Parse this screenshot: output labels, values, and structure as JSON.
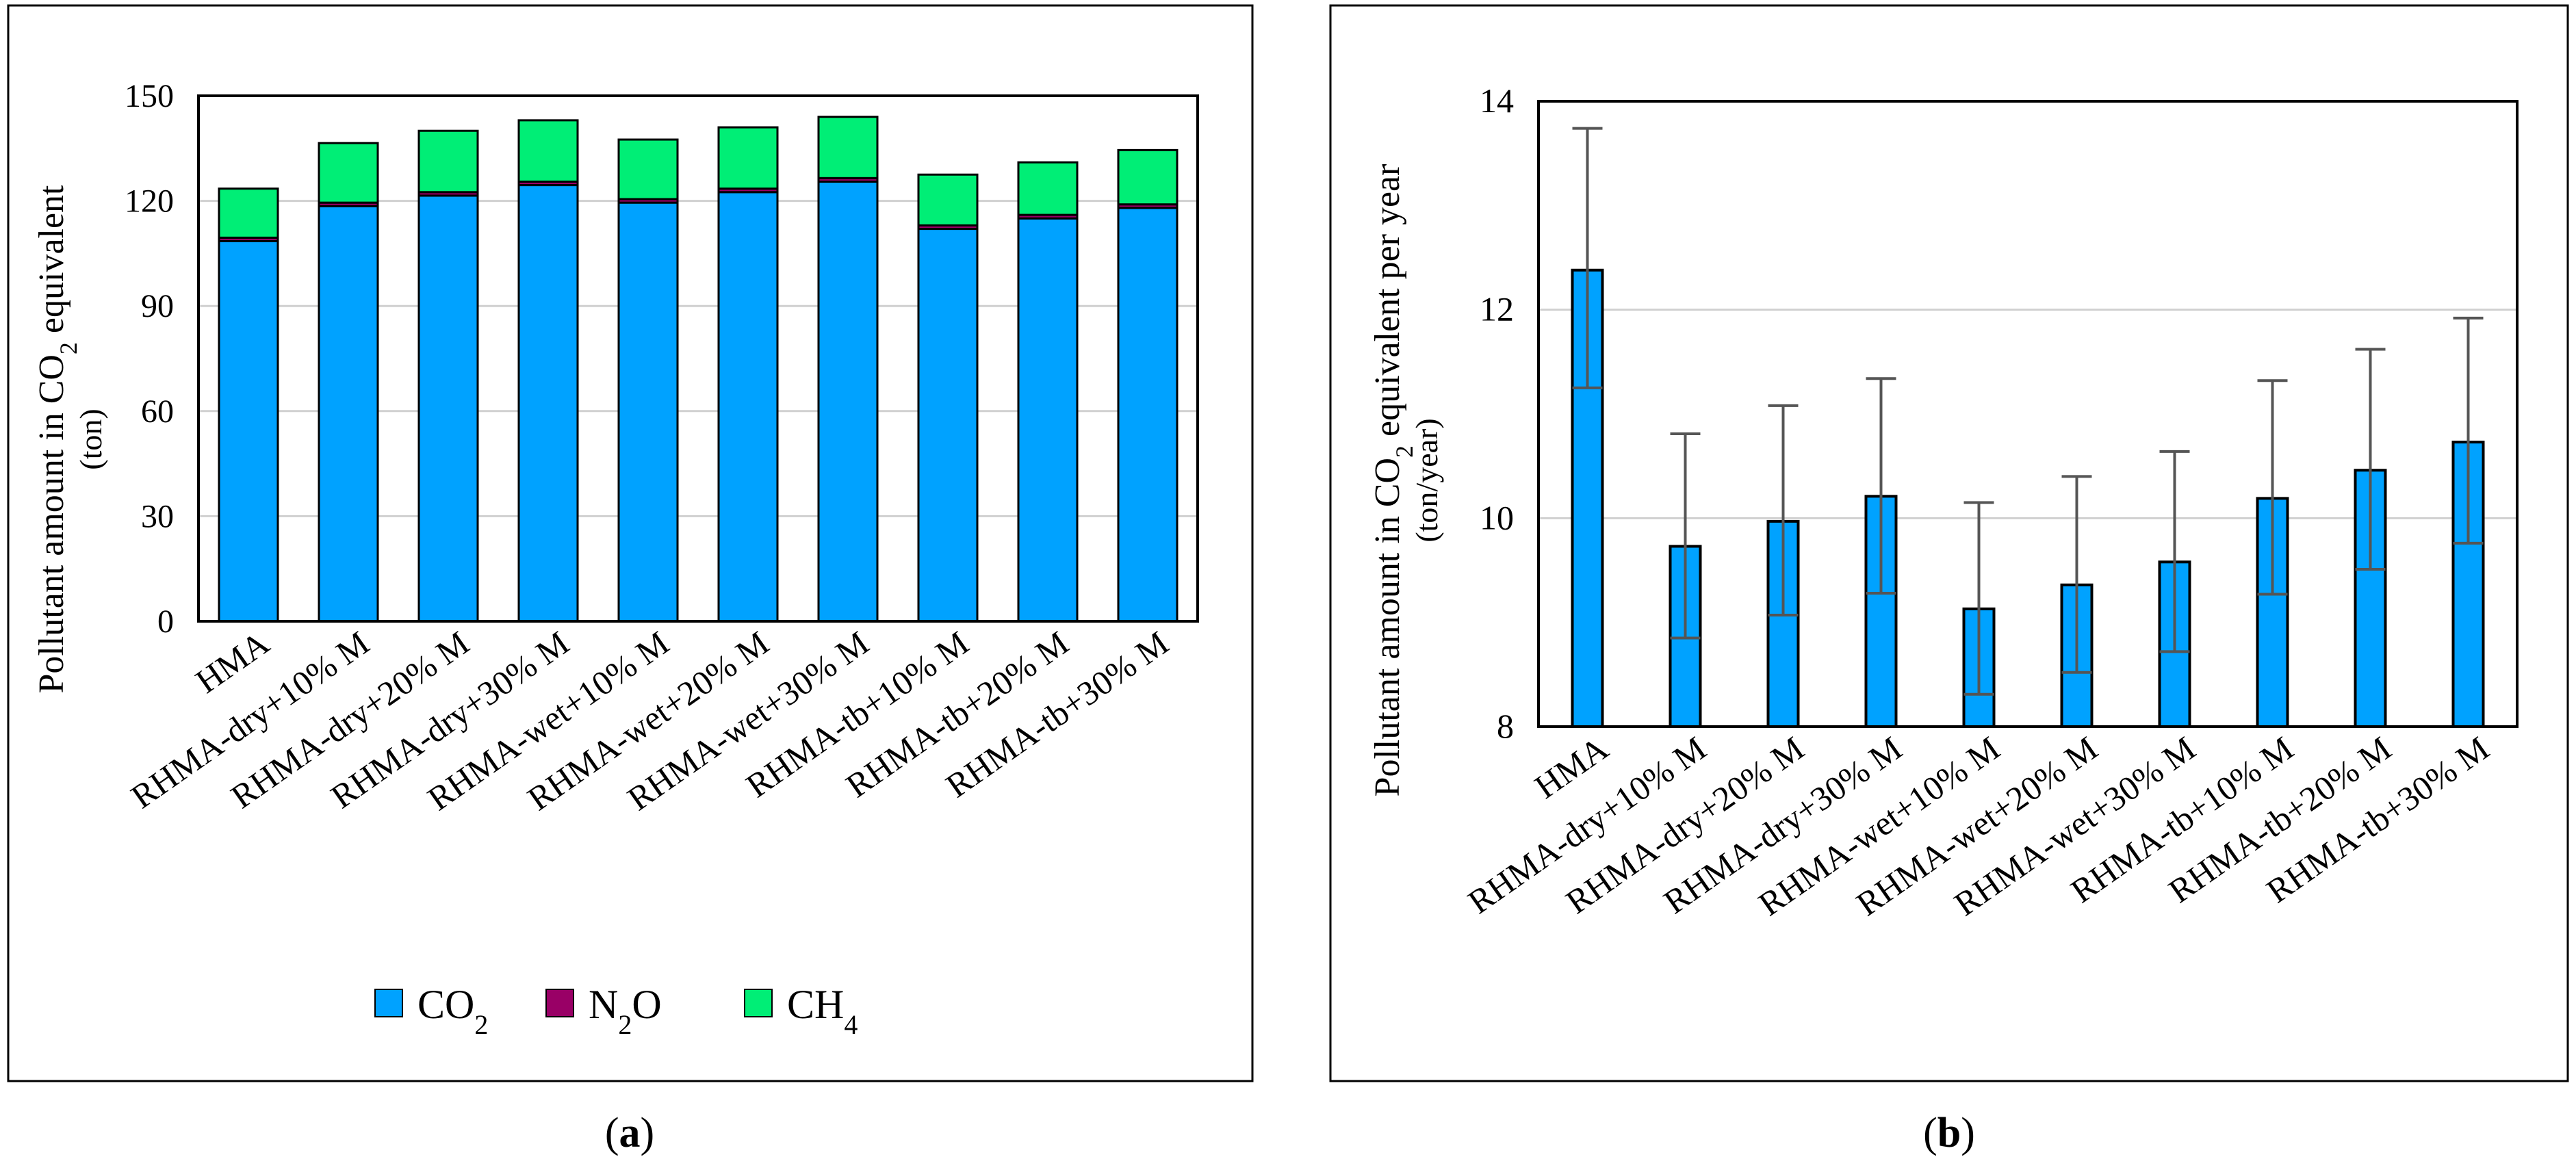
{
  "chart_data": [
    {
      "panel": "a",
      "type": "bar",
      "stacked": true,
      "categories": [
        "HMA",
        "RHMA-dry+10% M",
        "RHMA-dry+20% M",
        "RHMA-dry+30% M",
        "RHMA-wet+10% M",
        "RHMA-wet+20% M",
        "RHMA-wet+30% M",
        "RHMA-tb+10% M",
        "RHMA-tb+20% M",
        "RHMA-tb+30% M"
      ],
      "series": [
        {
          "name": "CO2",
          "label_base": "CO",
          "label_sub": "2",
          "color": "#00a2ff",
          "values": [
            108.5,
            118.5,
            121.5,
            124.5,
            119.5,
            122.5,
            125.5,
            112.0,
            115.0,
            118.0
          ]
        },
        {
          "name": "N2O",
          "label_base": "N",
          "label_sub": "2",
          "label_tail": "O",
          "color": "#990066",
          "values": [
            1.0,
            1.0,
            1.0,
            1.0,
            1.0,
            1.0,
            1.0,
            1.0,
            1.0,
            1.0
          ]
        },
        {
          "name": "CH4",
          "label_base": "CH",
          "label_sub": "4",
          "color": "#00ee76",
          "values": [
            14.0,
            17.0,
            17.5,
            17.5,
            17.0,
            17.5,
            17.5,
            14.5,
            15.0,
            15.5
          ]
        }
      ],
      "ylabel_line1_pre": "Pollutant amount in CO",
      "ylabel_line1_sub": "2",
      "ylabel_line1_post": " equivalent",
      "ylabel_line2": "(ton)",
      "ylim": [
        0,
        150
      ],
      "yticks": [
        0,
        30,
        60,
        90,
        120,
        150
      ],
      "grid": true,
      "legend": "bottom",
      "caption": "a"
    },
    {
      "panel": "b",
      "type": "bar",
      "error_bars": true,
      "categories": [
        "HMA",
        "RHMA-dry+10% M",
        "RHMA-dry+20% M",
        "RHMA-dry+30% M",
        "RHMA-wet+10% M",
        "RHMA-wet+20% M",
        "RHMA-wet+30% M",
        "RHMA-tb+10% M",
        "RHMA-tb+20% M",
        "RHMA-tb+30% M"
      ],
      "values": [
        12.38,
        9.73,
        9.97,
        10.21,
        9.13,
        9.36,
        9.58,
        10.19,
        10.46,
        10.73
      ],
      "error_low": [
        11.25,
        8.85,
        9.07,
        9.28,
        8.31,
        8.52,
        8.72,
        9.27,
        9.51,
        9.76
      ],
      "error_high": [
        13.74,
        10.81,
        11.08,
        11.34,
        10.15,
        10.4,
        10.64,
        11.32,
        11.62,
        11.92
      ],
      "color": "#00a2ff",
      "ylabel_line1_pre": "Pollutant amount in CO",
      "ylabel_line1_sub": "2",
      "ylabel_line1_post": " equivalent per year",
      "ylabel_line2": "(ton/year)",
      "ylim": [
        8,
        14
      ],
      "yticks": [
        8,
        10,
        12,
        14
      ],
      "grid": true,
      "caption": "b"
    }
  ]
}
